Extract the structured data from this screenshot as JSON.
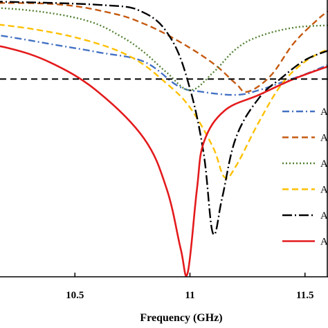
{
  "chart_data": {
    "type": "line",
    "title": "",
    "xlabel": "Frequency (GHz)",
    "ylabel": "",
    "xlim": [
      10.0,
      11.6
    ],
    "ylim": [
      -35,
      0
    ],
    "x_ticks": [
      10.5,
      11,
      11.5
    ],
    "x_tick_labels": [
      "10.5",
      "11",
      "11.5"
    ],
    "grid": false,
    "legend_position": "right",
    "reference_line": {
      "y": -10,
      "style": "dashed",
      "color": "#000000"
    },
    "series": [
      {
        "name": "A",
        "color": "#4472C4",
        "dash": "10,4,2,4",
        "points": [
          [
            10.0,
            -3.8
          ],
          [
            10.2,
            -4.6
          ],
          [
            10.4,
            -5.6
          ],
          [
            10.6,
            -6.6
          ],
          [
            10.8,
            -7.8
          ],
          [
            10.95,
            -10.9
          ],
          [
            11.05,
            -11.6
          ],
          [
            11.2,
            -12.0
          ],
          [
            11.3,
            -11.4
          ],
          [
            11.4,
            -10.4
          ],
          [
            11.5,
            -9.4
          ],
          [
            11.6,
            -8.2
          ]
        ]
      },
      {
        "name": "A",
        "color": "#C55A11",
        "dash": "9,5",
        "points": [
          [
            10.0,
            -0.4
          ],
          [
            10.4,
            -0.5
          ],
          [
            10.65,
            -1.6
          ],
          [
            10.8,
            -3.0
          ],
          [
            10.95,
            -5.2
          ],
          [
            11.1,
            -8.0
          ],
          [
            11.2,
            -10.6
          ],
          [
            11.25,
            -11.6
          ],
          [
            11.35,
            -9.6
          ],
          [
            11.45,
            -5.5
          ],
          [
            11.55,
            -2.6
          ],
          [
            11.6,
            -1.4
          ]
        ]
      },
      {
        "name": "A",
        "color": "#548235",
        "dash": "2,3",
        "points": [
          [
            10.0,
            -0.8
          ],
          [
            10.3,
            -1.3
          ],
          [
            10.55,
            -2.6
          ],
          [
            10.7,
            -4.6
          ],
          [
            10.8,
            -6.6
          ],
          [
            10.9,
            -9.2
          ],
          [
            11.0,
            -11.4
          ],
          [
            11.1,
            -9.2
          ],
          [
            11.2,
            -6.2
          ],
          [
            11.3,
            -4.6
          ],
          [
            11.45,
            -3.5
          ],
          [
            11.6,
            -3.2
          ]
        ]
      },
      {
        "name": "A",
        "color": "#FFC000",
        "dash": "9,5",
        "points": [
          [
            10.0,
            -2.6
          ],
          [
            10.3,
            -3.6
          ],
          [
            10.55,
            -5.1
          ],
          [
            10.75,
            -7.3
          ],
          [
            10.9,
            -10.6
          ],
          [
            11.0,
            -13.6
          ],
          [
            11.1,
            -18.6
          ],
          [
            11.15,
            -22.4
          ],
          [
            11.2,
            -21.0
          ],
          [
            11.3,
            -15.4
          ],
          [
            11.4,
            -10.6
          ],
          [
            11.5,
            -7.8
          ],
          [
            11.6,
            -6.2
          ]
        ]
      },
      {
        "name": "A",
        "color": "#000000",
        "dash": "14,4,2,4",
        "points": [
          [
            10.0,
            -0.1
          ],
          [
            10.6,
            -0.6
          ],
          [
            10.8,
            -1.6
          ],
          [
            10.92,
            -5.0
          ],
          [
            11.0,
            -11.2
          ],
          [
            11.06,
            -19.5
          ],
          [
            11.1,
            -29.5
          ],
          [
            11.14,
            -25.0
          ],
          [
            11.2,
            -17.4
          ],
          [
            11.3,
            -12.4
          ],
          [
            11.4,
            -9.8
          ],
          [
            11.5,
            -7.6
          ],
          [
            11.6,
            -6.4
          ]
        ]
      },
      {
        "name": "A",
        "color": "#E41A1C",
        "dash": "",
        "points": [
          [
            10.0,
            -5.2
          ],
          [
            10.2,
            -6.0
          ],
          [
            10.4,
            -8.0
          ],
          [
            10.6,
            -11.6
          ],
          [
            10.8,
            -17.5
          ],
          [
            10.9,
            -24.0
          ],
          [
            10.96,
            -31.5
          ],
          [
            10.99,
            -34.5
          ],
          [
            11.03,
            -24.0
          ],
          [
            11.06,
            -18.0
          ],
          [
            11.15,
            -14.0
          ],
          [
            11.3,
            -12.0
          ],
          [
            11.45,
            -10.0
          ],
          [
            11.6,
            -8.4
          ]
        ]
      }
    ]
  }
}
